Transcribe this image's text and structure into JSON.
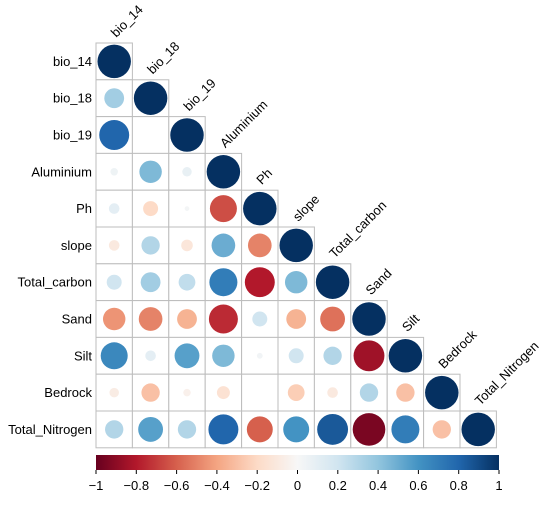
{
  "chart_data": {
    "type": "heatmap",
    "title": "",
    "variables": [
      "bio_14",
      "bio_18",
      "bio_19",
      "Aluminium",
      "Ph",
      "slope",
      "Total_carbon",
      "Sand",
      "Silt",
      "Bedrock",
      "Total_Nitrogen"
    ],
    "matrix_lower": [
      [
        1.0
      ],
      [
        0.35,
        1.0
      ],
      [
        0.8,
        0.0,
        1.0
      ],
      [
        0.05,
        0.45,
        0.08,
        1.0
      ],
      [
        0.1,
        -0.2,
        0.02,
        -0.65,
        1.0
      ],
      [
        -0.1,
        0.3,
        -0.12,
        0.5,
        -0.5,
        1.0
      ],
      [
        0.2,
        0.35,
        0.25,
        0.7,
        -0.8,
        0.45,
        1.0
      ],
      [
        -0.45,
        -0.5,
        -0.35,
        -0.75,
        0.2,
        -0.35,
        -0.55,
        1.0
      ],
      [
        0.65,
        0.1,
        0.55,
        0.45,
        0.03,
        0.2,
        0.3,
        -0.85,
        1.0
      ],
      [
        -0.08,
        -0.3,
        -0.05,
        -0.15,
        0.0,
        -0.25,
        -0.1,
        0.3,
        -0.3,
        1.0
      ],
      [
        0.3,
        0.55,
        0.3,
        0.8,
        -0.6,
        0.6,
        0.85,
        -0.95,
        0.7,
        -0.3,
        1.0
      ]
    ],
    "colorbar": {
      "range": [
        -1,
        1
      ],
      "ticks": [
        "−1",
        "−0.8",
        "−0.6",
        "−0.4",
        "−0.2",
        "0",
        "0.2",
        "0.4",
        "0.6",
        "0.8",
        "1"
      ],
      "tick_values": [
        -1,
        -0.8,
        -0.6,
        -0.4,
        -0.2,
        0,
        0.2,
        0.4,
        0.6,
        0.8,
        1
      ],
      "colors": [
        "#67001f",
        "#b2182b",
        "#d6604d",
        "#f4a582",
        "#fddbc7",
        "#f7f7f7",
        "#d1e5f0",
        "#92c5de",
        "#4393c3",
        "#2166ac",
        "#053061"
      ],
      "orientation": "horizontal",
      "placement": "bottom"
    },
    "legend": "none"
  }
}
